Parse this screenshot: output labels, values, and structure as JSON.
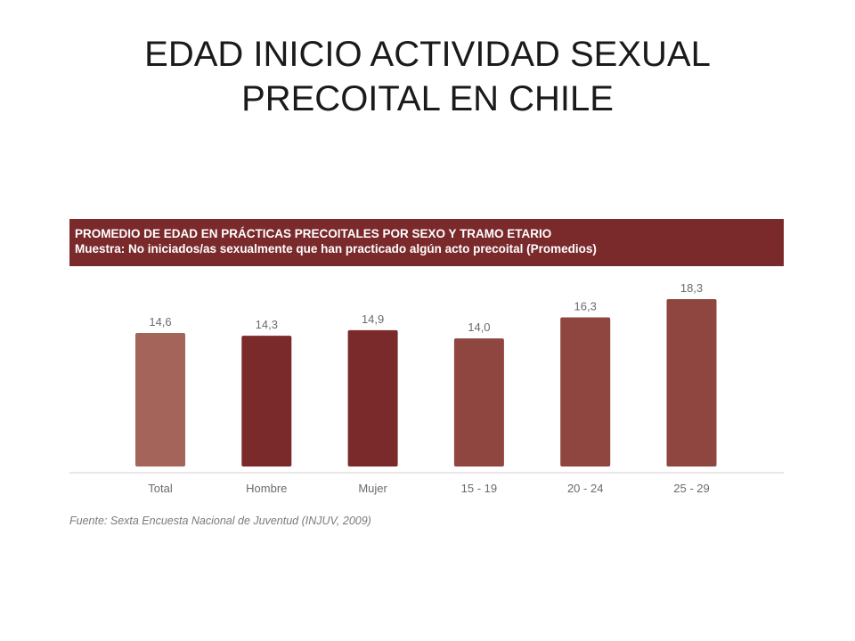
{
  "slide": {
    "title_line1": "EDAD INICIO ACTIVIDAD  SEXUAL",
    "title_line2": "PRECOITAL  EN CHILE"
  },
  "chart_data": {
    "type": "bar",
    "title": "PROMEDIO DE EDAD EN PRÁCTICAS PRECOITALES POR SEXO Y TRAMO ETARIO",
    "subtitle": "Muestra: No iniciados/as sexualmente que han practicado algún acto precoital (Promedios)",
    "categories": [
      "Total",
      "Hombre",
      "Mujer",
      "15 - 19",
      "20 - 24",
      "25 - 29"
    ],
    "values": [
      14.6,
      14.3,
      14.9,
      14.0,
      16.3,
      18.3
    ],
    "value_labels": [
      "14,6",
      "14,3",
      "14,9",
      "14,0",
      "16,3",
      "18,3"
    ],
    "bar_colors": [
      "#a5645a",
      "#7b2a2c",
      "#7b2a2c",
      "#8f4640",
      "#8f4640",
      "#8f4640"
    ],
    "ylim": [
      0,
      18.3
    ],
    "grid": false,
    "legend": "none",
    "source": "Fuente: Sexta Encuesta Nacional de Juventud (INJUV, 2009)"
  }
}
